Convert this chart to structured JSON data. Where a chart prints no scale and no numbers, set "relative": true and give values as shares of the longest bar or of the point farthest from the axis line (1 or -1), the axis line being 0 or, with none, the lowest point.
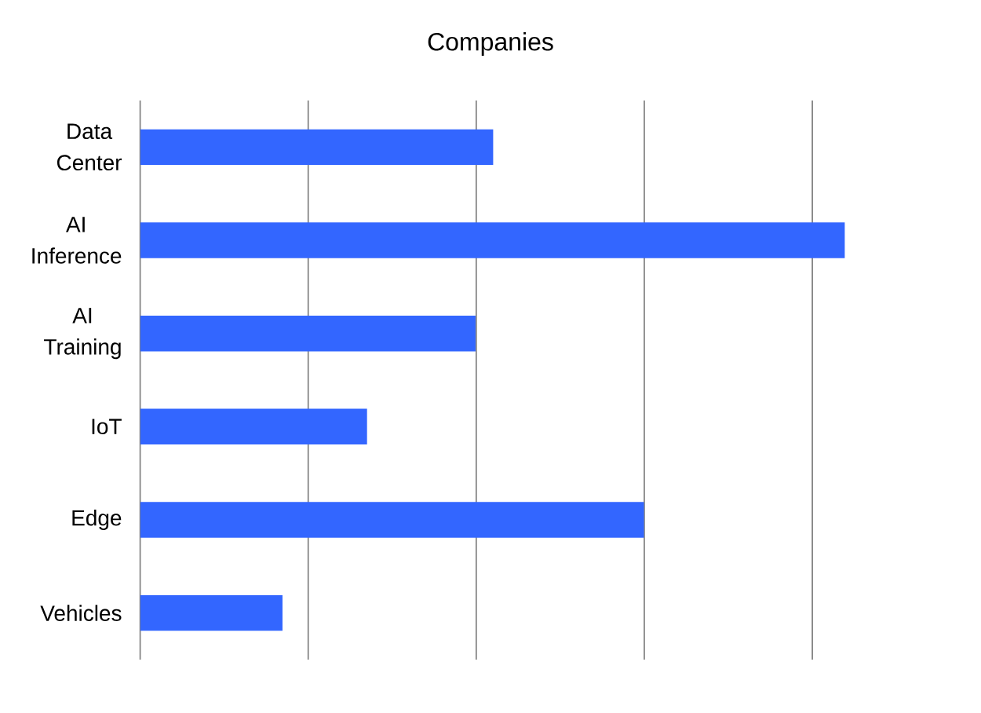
{
  "chart_data": {
    "type": "bar",
    "orientation": "horizontal",
    "relative": true,
    "title": "Companies",
    "categories": [
      "Data Center",
      "AI Inference",
      "AI Training",
      "IoT",
      "Edge",
      "Vehicles"
    ],
    "values": [
      0.501,
      1,
      0.476,
      0.322,
      0.715,
      0.202
    ],
    "color": "#3366ff",
    "grid": "x"
  }
}
